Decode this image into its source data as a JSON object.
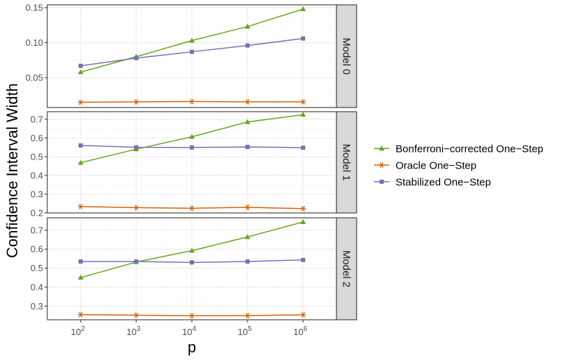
{
  "chart_data": {
    "type": "line",
    "facet_variable": "model",
    "x": [
      2,
      3,
      4,
      5,
      6
    ],
    "x_tick_labels": [
      {
        "base": "10",
        "exp": "2"
      },
      {
        "base": "10",
        "exp": "3"
      },
      {
        "base": "10",
        "exp": "4"
      },
      {
        "base": "10",
        "exp": "5"
      },
      {
        "base": "10",
        "exp": "6"
      }
    ],
    "xlabel": "p",
    "ylabel": "Confidence Interval Width",
    "x_scale": "log10",
    "xlim": [
      1.4,
      6.6
    ],
    "grid": true,
    "legend_position": "right",
    "series_styles": [
      {
        "name": "Bonferroni-corrected One-Step",
        "color": "#66a61e",
        "marker": "triangle"
      },
      {
        "name": "Oracle One-Step",
        "color": "#d95f02",
        "marker": "asterisk"
      },
      {
        "name": "Stabilized One-Step",
        "color": "#7570b3",
        "marker": "square"
      }
    ],
    "panels": [
      {
        "label": "Model 0",
        "ylim": [
          0.0075,
          0.154
        ],
        "yticks": [
          0.05,
          0.1,
          0.15
        ],
        "ytick_labels": [
          "0.05",
          "0.10",
          "0.15"
        ],
        "series": [
          {
            "name": "Bonferroni-corrected One-Step",
            "values": [
              0.058,
              0.08,
              0.103,
              0.123,
              0.148
            ]
          },
          {
            "name": "Oracle One-Step",
            "values": [
              0.015,
              0.0155,
              0.016,
              0.0155,
              0.0155
            ]
          },
          {
            "name": "Stabilized One-Step",
            "values": [
              0.067,
              0.078,
              0.087,
              0.096,
              0.106
            ]
          }
        ]
      },
      {
        "label": "Model 1",
        "ylim": [
          0.2,
          0.74
        ],
        "yticks": [
          0.2,
          0.3,
          0.4,
          0.5,
          0.6,
          0.7
        ],
        "ytick_labels": [
          "0.2",
          "0.3",
          "0.4",
          "0.5",
          "0.6",
          "0.7"
        ],
        "series": [
          {
            "name": "Bonferroni-corrected One-Step",
            "values": [
              0.468,
              0.54,
              0.606,
              0.685,
              0.724
            ]
          },
          {
            "name": "Oracle One-Step",
            "values": [
              0.234,
              0.228,
              0.225,
              0.23,
              0.223
            ]
          },
          {
            "name": "Stabilized One-Step",
            "values": [
              0.56,
              0.55,
              0.549,
              0.552,
              0.548
            ]
          }
        ]
      },
      {
        "label": "Model 2",
        "ylim": [
          0.228,
          0.765
        ],
        "yticks": [
          0.3,
          0.4,
          0.5,
          0.6,
          0.7
        ],
        "ytick_labels": [
          "0.3",
          "0.4",
          "0.5",
          "0.6",
          "0.7"
        ],
        "series": [
          {
            "name": "Bonferroni-corrected One-Step",
            "values": [
              0.45,
              0.532,
              0.592,
              0.664,
              0.743
            ]
          },
          {
            "name": "Oracle One-Step",
            "values": [
              0.255,
              0.252,
              0.249,
              0.25,
              0.254
            ]
          },
          {
            "name": "Stabilized One-Step",
            "values": [
              0.535,
              0.535,
              0.53,
              0.535,
              0.543
            ]
          }
        ]
      }
    ],
    "legend": [
      {
        "label": "Bonferroni−corrected One−Step",
        "color": "#66a61e",
        "marker": "triangle"
      },
      {
        "label": "Oracle One−Step",
        "color": "#d95f02",
        "marker": "asterisk"
      },
      {
        "label": "Stabilized One−Step",
        "color": "#7570b3",
        "marker": "square"
      }
    ]
  }
}
